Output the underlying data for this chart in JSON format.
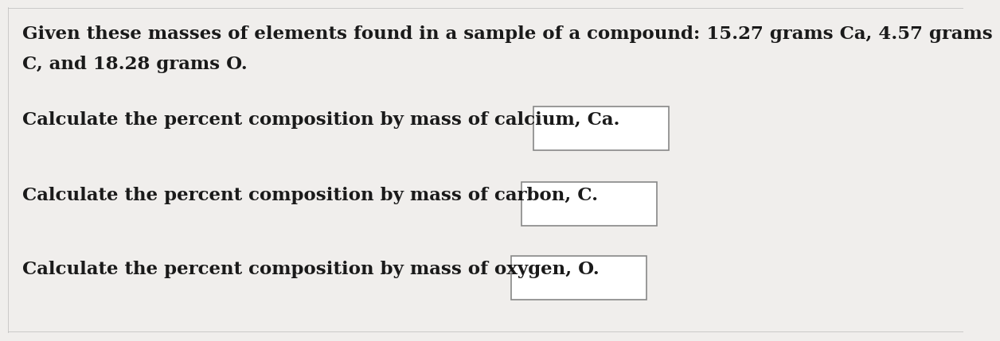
{
  "background_color": "#f0eeec",
  "text_color": "#1a1a1a",
  "font_family": "DejaVu Serif",
  "intro_line1": "Given these masses of elements found in a sample of a compound: 15.27 grams Ca, 4.57 grams",
  "intro_line2": "C, and 18.28 grams O.",
  "question1": "Calculate the percent composition by mass of calcium, Ca.",
  "question2": "Calculate the percent composition by mass of carbon, C.",
  "question3": "Calculate the percent composition by mass of oxygen, O.",
  "box_edge_color": "#888888",
  "box_face_color": "#ffffff",
  "fig_width": 12.0,
  "fig_height": 4.1,
  "fontsize": 16.5
}
